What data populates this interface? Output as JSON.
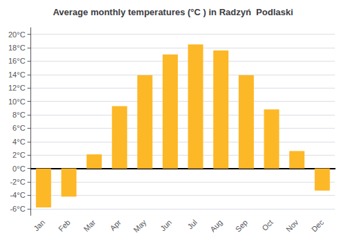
{
  "chart_data": {
    "type": "bar",
    "title": "Average monthly temperatures (°C ) in Radzyń  Podlaski",
    "categories": [
      "Jan",
      "Feb",
      "Mar",
      "Apr",
      "May",
      "Jun",
      "Jul",
      "Aug",
      "Sep",
      "Oct",
      "Nov",
      "Dec"
    ],
    "values": [
      -5.8,
      -4.2,
      2.1,
      9.3,
      13.9,
      17.0,
      18.5,
      17.6,
      13.9,
      8.8,
      2.6,
      -3.3
    ],
    "color": "#FDB827",
    "ylim": [
      -7,
      21
    ],
    "yticks": [
      {
        "value": -6,
        "label": "-6°C"
      },
      {
        "value": -4,
        "label": "-4°C"
      },
      {
        "value": -2,
        "label": "-2°C"
      },
      {
        "value": 0,
        "label": "0°C"
      },
      {
        "value": 2,
        "label": "2°C"
      },
      {
        "value": 4,
        "label": "4°C"
      },
      {
        "value": 6,
        "label": "6°C"
      },
      {
        "value": 8,
        "label": "8°C"
      },
      {
        "value": 10,
        "label": "10°C"
      },
      {
        "value": 12,
        "label": "12°C"
      },
      {
        "value": 14,
        "label": "14°C"
      },
      {
        "value": 16,
        "label": "16°C"
      },
      {
        "value": 18,
        "label": "18°C"
      },
      {
        "value": 20,
        "label": "20°C"
      }
    ],
    "grid": true
  }
}
